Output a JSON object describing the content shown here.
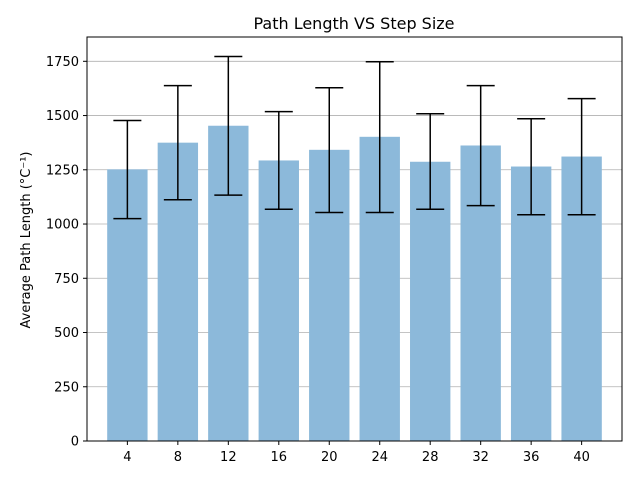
{
  "chart_data": {
    "type": "bar",
    "title": "Path Length VS Step Size",
    "xlabel": "",
    "ylabel": "Average Path Length (°C⁻¹)",
    "categories": [
      "4",
      "8",
      "12",
      "16",
      "20",
      "24",
      "28",
      "32",
      "36",
      "40"
    ],
    "values": [
      1252,
      1375,
      1453,
      1293,
      1342,
      1402,
      1287,
      1362,
      1265,
      1311
    ],
    "error_low": [
      1025,
      1112,
      1133,
      1068,
      1053,
      1053,
      1068,
      1085,
      1043,
      1043
    ],
    "error_high": [
      1477,
      1638,
      1772,
      1518,
      1628,
      1748,
      1508,
      1638,
      1485,
      1578
    ],
    "yticks": [
      0,
      250,
      500,
      750,
      1000,
      1250,
      1500,
      1750
    ],
    "ylim": [
      0,
      1862
    ],
    "grid": "y",
    "bar_color": "#8cb9da",
    "error_color": "#000000"
  }
}
